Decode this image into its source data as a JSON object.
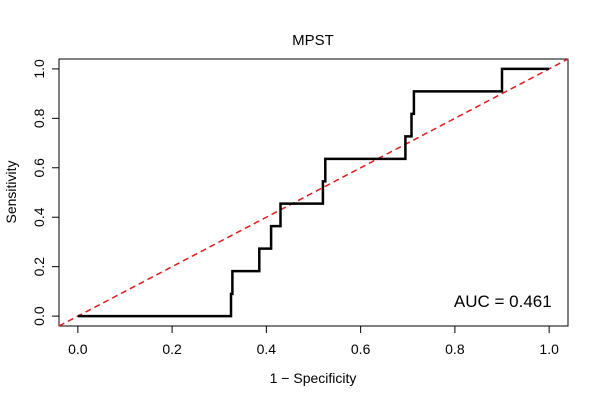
{
  "chart_data": {
    "type": "line",
    "title": "MPST",
    "xlabel": "1 − Specificity",
    "ylabel": "Sensitivity",
    "xlim": [
      -0.04,
      1.04
    ],
    "ylim": [
      -0.04,
      1.04
    ],
    "xticks": [
      "0.0",
      "0.2",
      "0.4",
      "0.6",
      "0.8",
      "1.0"
    ],
    "yticks": [
      "0.0",
      "0.2",
      "0.4",
      "0.6",
      "0.8",
      "1.0"
    ],
    "grid": false,
    "series": [
      {
        "style": "step",
        "color": "#000000",
        "points": [
          [
            0.0,
            0.0
          ],
          [
            0.325,
            0.0
          ],
          [
            0.325,
            0.09
          ],
          [
            0.328,
            0.09
          ],
          [
            0.328,
            0.182
          ],
          [
            0.385,
            0.182
          ],
          [
            0.385,
            0.273
          ],
          [
            0.41,
            0.273
          ],
          [
            0.41,
            0.364
          ],
          [
            0.43,
            0.364
          ],
          [
            0.43,
            0.455
          ],
          [
            0.52,
            0.455
          ],
          [
            0.52,
            0.545
          ],
          [
            0.525,
            0.545
          ],
          [
            0.525,
            0.636
          ],
          [
            0.695,
            0.636
          ],
          [
            0.695,
            0.727
          ],
          [
            0.708,
            0.727
          ],
          [
            0.708,
            0.818
          ],
          [
            0.713,
            0.818
          ],
          [
            0.713,
            0.909
          ],
          [
            0.9,
            0.909
          ],
          [
            0.9,
            1.0
          ],
          [
            1.0,
            1.0
          ]
        ]
      },
      {
        "style": "dashed",
        "color": "#e31a1c",
        "points": [
          [
            -0.04,
            -0.04
          ],
          [
            1.04,
            1.04
          ]
        ]
      }
    ],
    "annotations": [
      {
        "text": "AUC = 0.461",
        "x": 0.98,
        "y": 0.02,
        "anchor": "end"
      }
    ]
  }
}
